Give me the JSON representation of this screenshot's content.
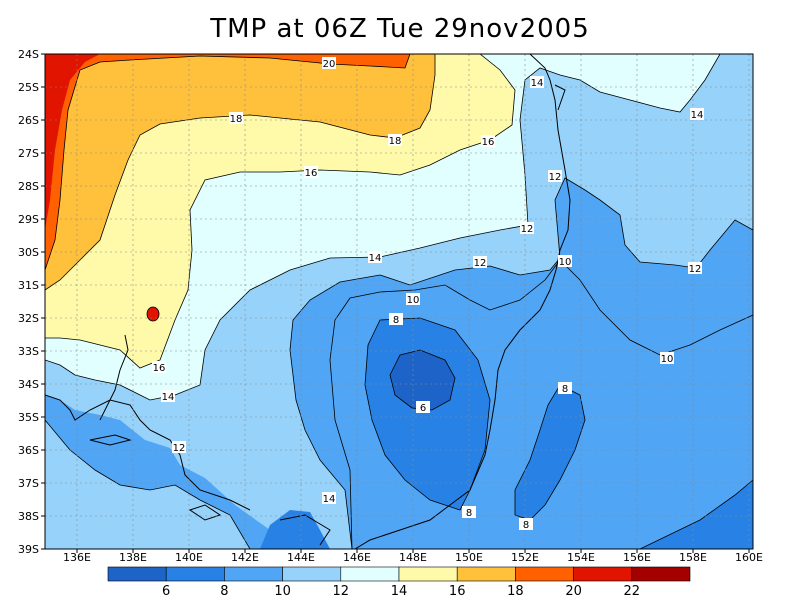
{
  "title": "TMP at 06Z Tue 29nov2005",
  "y_ticks": [
    "24S",
    "25S",
    "26S",
    "27S",
    "28S",
    "29S",
    "30S",
    "31S",
    "32S",
    "33S",
    "34S",
    "35S",
    "36S",
    "37S",
    "38S",
    "39S"
  ],
  "x_ticks": [
    "136E",
    "138E",
    "140E",
    "142E",
    "144E",
    "146E",
    "148E",
    "150E",
    "152E",
    "154E",
    "156E",
    "158E",
    "160E"
  ],
  "contour_labels": [
    "20",
    "18",
    "18",
    "16",
    "16",
    "14",
    "14",
    "14",
    "12",
    "12",
    "10",
    "10",
    "8",
    "6",
    "8",
    "8",
    "8",
    "10",
    "12",
    "12",
    "14",
    "16",
    "12",
    "14"
  ],
  "colorbar": {
    "labels": [
      "6",
      "8",
      "10",
      "12",
      "14",
      "16",
      "18",
      "20",
      "22"
    ],
    "colors": [
      "#1e64c8",
      "#2882e6",
      "#50a5f5",
      "#96d2fa",
      "#e1ffff",
      "#fffaaa",
      "#ffc03c",
      "#ff6000",
      "#e11400",
      "#a50000"
    ]
  },
  "levels": {
    "c22": "#e11400",
    "c20": "#ff6000",
    "c18": "#ffc03c",
    "c16": "#fffaaa",
    "c14": "#e1ffff",
    "c12": "#96d2fa",
    "c10": "#50a5f5",
    "c8": "#2882e6",
    "c6": "#1e64c8"
  }
}
